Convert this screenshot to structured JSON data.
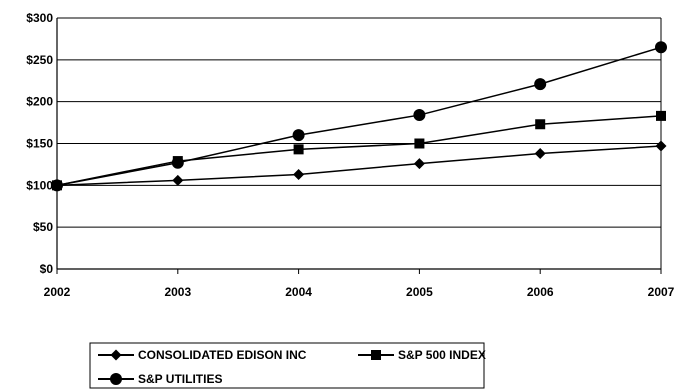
{
  "chart_data": {
    "type": "line",
    "x": [
      "2002",
      "2003",
      "2004",
      "2005",
      "2006",
      "2007"
    ],
    "series": [
      {
        "name": "CONSOLIDATED EDISON INC",
        "marker": "diamond",
        "values": [
          100,
          106,
          113,
          126,
          138,
          147
        ]
      },
      {
        "name": "S&P 500 INDEX",
        "marker": "square",
        "values": [
          100,
          129,
          143,
          150,
          173,
          183
        ]
      },
      {
        "name": "S&P UTILITIES",
        "marker": "circle",
        "values": [
          100,
          127,
          160,
          184,
          221,
          265
        ]
      }
    ],
    "y_ticks": [
      "$0",
      "$50",
      "$100",
      "$150",
      "$200",
      "$250",
      "$300"
    ],
    "ylim": [
      0,
      300
    ],
    "grid": true,
    "legend_position": "bottom",
    "colors": {
      "line": "#000000",
      "grid": "#000000",
      "background": "#ffffff"
    }
  }
}
